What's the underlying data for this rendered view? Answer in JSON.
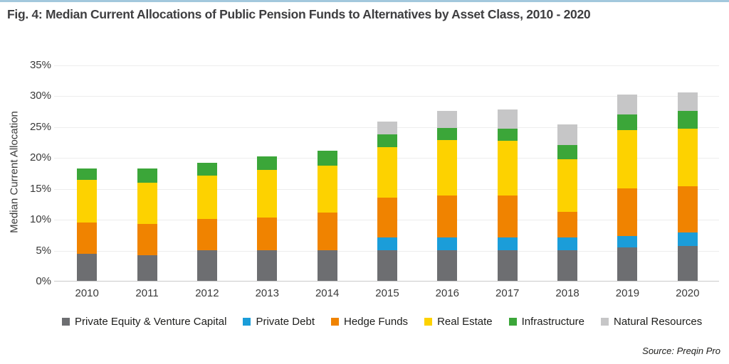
{
  "page": {
    "title": "Fig. 4: Median Current Allocations of Public Pension Funds to Alternatives by Asset Class, 2010 - 2020",
    "source": "Source: Preqin Pro"
  },
  "chart_data": {
    "type": "bar",
    "stacked": true,
    "title": "Fig. 4: Median Current Allocations of Public Pension Funds to Alternatives by Asset Class, 2010 - 2020",
    "xlabel": "",
    "ylabel": "Median Current Allocation",
    "ylim": [
      0,
      35
    ],
    "ytick_labels": [
      "0%",
      "5%",
      "10%",
      "15%",
      "20%",
      "25%",
      "30%",
      "35%"
    ],
    "grid": true,
    "legend_position": "bottom",
    "categories": [
      "2010",
      "2011",
      "2012",
      "2013",
      "2014",
      "2015",
      "2016",
      "2017",
      "2018",
      "2019",
      "2020"
    ],
    "series": [
      {
        "name": "Private Equity & Venture Capital",
        "color": "#6d6e71",
        "values": [
          4.4,
          4.2,
          4.9,
          4.9,
          4.9,
          4.9,
          5.0,
          5.0,
          5.0,
          5.4,
          5.6
        ]
      },
      {
        "name": "Private Debt",
        "color": "#1b9dd9",
        "values": [
          0,
          0,
          0,
          0,
          0,
          2.1,
          2.0,
          2.0,
          2.0,
          1.9,
          2.2
        ]
      },
      {
        "name": "Hedge Funds",
        "color": "#f08300",
        "values": [
          5.0,
          5.0,
          5.1,
          5.3,
          6.1,
          6.5,
          6.8,
          6.8,
          4.2,
          7.7,
          7.5
        ]
      },
      {
        "name": "Real Estate",
        "color": "#fdd200",
        "values": [
          7.0,
          6.7,
          7.1,
          7.8,
          7.7,
          8.1,
          9.0,
          8.9,
          8.5,
          9.4,
          9.4
        ]
      },
      {
        "name": "Infrastructure",
        "color": "#3ba639",
        "values": [
          1.8,
          2.3,
          2.0,
          2.1,
          2.4,
          2.1,
          2.0,
          2.0,
          2.3,
          2.5,
          2.8
        ]
      },
      {
        "name": "Natural Resources",
        "color": "#c6c6c7",
        "values": [
          0,
          0,
          0,
          0,
          0,
          2.1,
          2.7,
          3.0,
          3.3,
          3.3,
          3.0
        ]
      }
    ],
    "stack_totals": [
      18.2,
      18.2,
      19.1,
      20.1,
      21.1,
      25.8,
      27.5,
      27.7,
      25.3,
      30.2,
      30.5
    ]
  }
}
